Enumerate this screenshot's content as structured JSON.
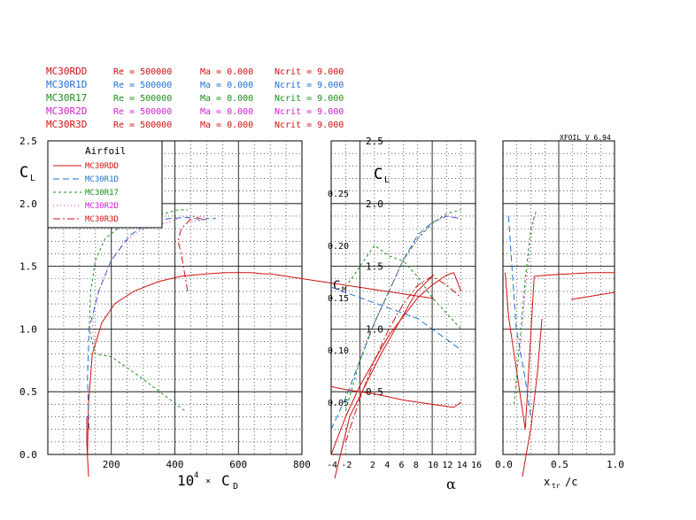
{
  "header_rows": [
    {
      "name": "MC30RDD",
      "re": "Re = 500000",
      "ma": "Ma = 0.000",
      "ncrit": "Ncrit = 9.000",
      "color": "#d01010"
    },
    {
      "name": "MC30R1D",
      "re": "Re = 500000",
      "ma": "Ma = 0.000",
      "ncrit": "Ncrit = 9.000",
      "color": "#1f6fd0"
    },
    {
      "name": "MC30R17",
      "re": "Re = 500000",
      "ma": "Ma = 0.000",
      "ncrit": "Ncrit = 9.000",
      "color": "#189018"
    },
    {
      "name": "MC30R2D",
      "re": "Re = 500000",
      "ma": "Ma = 0.000",
      "ncrit": "Ncrit = 9.000",
      "color": "#d020d0"
    },
    {
      "name": "MC30R3D",
      "re": "Re = 500000",
      "ma": "Ma = 0.000",
      "ncrit": "Ncrit = 9.000",
      "color": "#d01010"
    }
  ],
  "version_label": "XFOIL V 6.94",
  "legend": {
    "title": "Airfoil",
    "entries": [
      {
        "name": "MC30RDD",
        "color": "#d01010",
        "dash": ""
      },
      {
        "name": "MC30R1D",
        "color": "#1f6fd0",
        "dash": "7,4"
      },
      {
        "name": "MC30R17",
        "color": "#189018",
        "dash": "3,3"
      },
      {
        "name": "MC30R2D",
        "color": "#d020d0",
        "dash": "1,3"
      },
      {
        "name": "MC30R3D",
        "color": "#d01010",
        "dash": "8,3,2,3"
      }
    ]
  },
  "chart_data": [
    {
      "type": "line",
      "panel": "polar",
      "ylabel": "CL",
      "xlabel": "10⁴ × CD",
      "xlim": [
        0,
        800
      ],
      "ylim": [
        0,
        2.5
      ],
      "x_ticks": [
        200,
        400,
        600,
        800
      ],
      "y_ticks": [
        0.0,
        0.5,
        1.0,
        1.5,
        2.0,
        2.5
      ],
      "grid": true,
      "legend_position": "top-left",
      "series": [
        {
          "name": "MC30RDD",
          "x": [
            125,
            128,
            140,
            170,
            210,
            270,
            350,
            420,
            500,
            560,
            600,
            640,
            680,
            700
          ],
          "y": [
            0.0,
            0.4,
            0.8,
            1.05,
            1.2,
            1.3,
            1.38,
            1.42,
            1.44,
            1.45,
            1.45,
            1.45,
            1.44,
            1.44
          ]
        },
        {
          "name": "MC30R1D",
          "x": [
            130,
            125,
            130,
            160,
            200,
            260,
            320,
            380,
            440,
            470,
            480,
            500,
            530
          ],
          "y": [
            0.2,
            0.6,
            1.0,
            1.3,
            1.55,
            1.75,
            1.85,
            1.88,
            1.89,
            1.88,
            1.86,
            1.88,
            1.88
          ]
        },
        {
          "name": "MC30R17",
          "x": [
            430,
            300,
            200,
            150,
            130,
            135,
            150,
            180,
            230,
            290,
            340,
            380,
            410,
            440
          ],
          "y": [
            0.35,
            0.6,
            0.78,
            0.8,
            1.0,
            1.3,
            1.55,
            1.72,
            1.82,
            1.87,
            1.9,
            1.93,
            1.95,
            1.95
          ]
        },
        {
          "name": "MC30R2D",
          "x": [
            150,
            140,
            145,
            160,
            190,
            240,
            300,
            380,
            430,
            460,
            480,
            500
          ],
          "y": [
            0.8,
            1.0,
            1.15,
            1.3,
            1.5,
            1.7,
            1.8,
            1.85,
            1.9,
            1.85,
            1.9,
            1.88
          ]
        },
        {
          "name": "MC30R3D",
          "x": [
            440,
            430,
            420,
            410,
            420,
            440,
            460,
            480,
            500
          ],
          "y": [
            1.3,
            1.45,
            1.6,
            1.7,
            1.8,
            1.85,
            1.9,
            1.88,
            1.86
          ]
        }
      ]
    },
    {
      "type": "line",
      "panel": "lift-moment",
      "ylabel": "CL",
      "y2label": "CM",
      "xlabel": "α",
      "xlim": [
        -4,
        16
      ],
      "ylim": [
        0,
        2.5
      ],
      "y2lim": [
        0,
        0.3
      ],
      "x_ticks": [
        -4,
        -2,
        2,
        4,
        6,
        8,
        10,
        12,
        14,
        16
      ],
      "y_ticks": [
        0.5,
        1.0,
        1.5,
        2.0,
        2.5
      ],
      "y2_ticks": [
        0.05,
        0.1,
        0.15,
        0.2,
        0.25
      ],
      "grid": true,
      "series": [
        {
          "name": "MC30RDD CL",
          "x": [
            -4,
            -2,
            0,
            2,
            4,
            6,
            8,
            10,
            12,
            13,
            14
          ],
          "y": [
            0.0,
            0.3,
            0.55,
            0.75,
            0.95,
            1.1,
            1.25,
            1.35,
            1.43,
            1.45,
            1.3
          ]
        },
        {
          "name": "MC30RDD CM",
          "x": [
            -4,
            -2,
            0,
            2,
            4,
            6,
            8,
            10,
            12,
            13,
            14
          ],
          "y": [
            0.065,
            0.062,
            0.06,
            0.058,
            0.055,
            0.052,
            0.05,
            0.048,
            0.046,
            0.045,
            0.05
          ]
        },
        {
          "name": "MC30R1D CL",
          "x": [
            -4,
            -2,
            0,
            2,
            4,
            6,
            8,
            10,
            12,
            14
          ],
          "y": [
            0.2,
            0.45,
            0.75,
            1.05,
            1.3,
            1.55,
            1.75,
            1.85,
            1.9,
            1.88
          ]
        },
        {
          "name": "MC30R1D CM",
          "x": [
            -4,
            -2,
            0,
            2,
            4,
            6,
            8,
            10,
            12,
            14
          ],
          "y": [
            0.16,
            0.155,
            0.15,
            0.145,
            0.14,
            0.135,
            0.13,
            0.12,
            0.11,
            0.1
          ]
        },
        {
          "name": "MC30R17 CL",
          "x": [
            -2,
            0,
            2,
            4,
            6,
            8,
            10,
            12,
            14
          ],
          "y": [
            0.35,
            0.75,
            1.05,
            1.3,
            1.55,
            1.72,
            1.84,
            1.92,
            1.95
          ]
        },
        {
          "name": "MC30R17 CM",
          "x": [
            -2,
            0,
            2,
            4,
            6,
            8,
            10,
            12,
            14
          ],
          "y": [
            0.16,
            0.18,
            0.2,
            0.19,
            0.185,
            0.17,
            0.15,
            0.135,
            0.12
          ]
        },
        {
          "name": "MC30R2D CL",
          "x": [
            0,
            2,
            4,
            6,
            8,
            10,
            12,
            14
          ],
          "y": [
            0.8,
            1.05,
            1.3,
            1.55,
            1.72,
            1.85,
            1.9,
            1.88
          ]
        },
        {
          "name": "MC30R3D CL",
          "x": [
            -2,
            0,
            2,
            4,
            6,
            8,
            10,
            12,
            14
          ],
          "y": [
            0.1,
            0.45,
            0.75,
            1.0,
            1.2,
            1.35,
            1.42,
            1.35,
            1.25
          ]
        }
      ]
    },
    {
      "type": "line",
      "panel": "transition",
      "xlabel": "xtr / c",
      "xlim": [
        0,
        1
      ],
      "ylim": [
        0,
        2.5
      ],
      "x_ticks": [
        0.0,
        0.5,
        1.0
      ],
      "grid": true,
      "series": [
        {
          "name": "MC30RDD top",
          "x": [
            0.02,
            0.05,
            0.1,
            0.15,
            0.2,
            0.28,
            0.4,
            0.6,
            0.8,
            1.0
          ],
          "y": [
            1.45,
            1.1,
            0.8,
            0.5,
            0.2,
            1.42,
            1.43,
            1.44,
            1.45,
            1.45
          ]
        },
        {
          "name": "MC30R1D top",
          "x": [
            0.05,
            0.08,
            0.12,
            0.2,
            0.25
          ],
          "y": [
            1.9,
            1.5,
            1.0,
            0.6,
            0.3
          ]
        },
        {
          "name": "MC30R17 top",
          "x": [
            0.1,
            0.15,
            0.2,
            0.25,
            0.3
          ],
          "y": [
            0.4,
            0.9,
            1.4,
            1.8,
            1.95
          ]
        },
        {
          "name": "MC30R2D top",
          "x": [
            0.15,
            0.2,
            0.25,
            0.28
          ],
          "y": [
            0.8,
            1.3,
            1.7,
            1.9
          ]
        }
      ]
    }
  ]
}
